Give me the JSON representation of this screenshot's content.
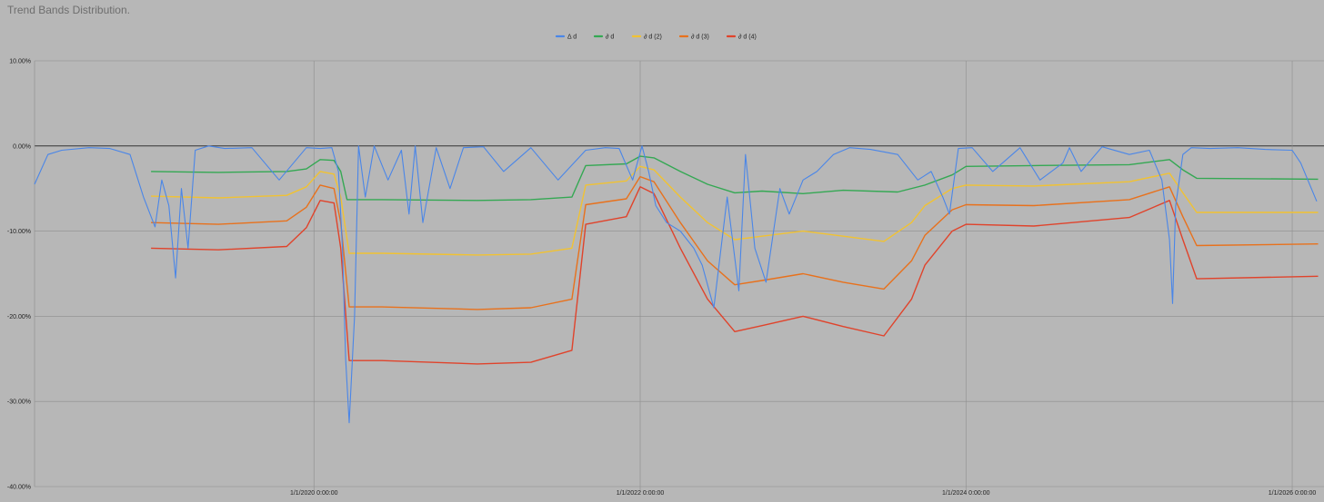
{
  "chart_data": {
    "type": "line",
    "title": "Trend Bands Distribution.",
    "xlabel": "",
    "ylabel": "",
    "ylim": [
      -0.4,
      0.1
    ],
    "y_ticks": [
      0.1,
      0.0,
      -0.1,
      -0.2,
      -0.3,
      -0.4
    ],
    "y_tick_labels": [
      "10.00%",
      "0.00%",
      "-10.00%",
      "-20.00%",
      "-30.00%",
      "-40.00%"
    ],
    "xlim": [
      "2018-04-15",
      "2026-03-01"
    ],
    "x_ticks": [
      "2020-01-01",
      "2022-01-01",
      "2024-01-01",
      "2026-01-01"
    ],
    "x_tick_labels": [
      "1/1/2020 0:00:00",
      "1/1/2022 0:00:00",
      "1/1/2024 0:00:00",
      "1/1/2026 0:00:00"
    ],
    "legend_position": "top-center",
    "grid": true,
    "series": [
      {
        "name": "Δ d",
        "color": "#4a86e8",
        "x": [
          "2018-04-15",
          "2018-05-15",
          "2018-06-15",
          "2018-08-15",
          "2018-10-01",
          "2018-11-15",
          "2018-12-15",
          "2019-01-10",
          "2019-01-25",
          "2019-02-10",
          "2019-02-25",
          "2019-03-10",
          "2019-03-25",
          "2019-04-10",
          "2019-05-10",
          "2019-06-15",
          "2019-08-15",
          "2019-10-15",
          "2019-12-15",
          "2020-01-15",
          "2020-02-10",
          "2020-02-25",
          "2020-03-05",
          "2020-03-12",
          "2020-03-20",
          "2020-04-01",
          "2020-04-10",
          "2020-04-25",
          "2020-05-15",
          "2020-06-15",
          "2020-07-15",
          "2020-08-01",
          "2020-08-15",
          "2020-09-01",
          "2020-10-01",
          "2020-11-01",
          "2020-12-01",
          "2021-01-15",
          "2021-03-01",
          "2021-05-01",
          "2021-07-01",
          "2021-09-01",
          "2021-10-15",
          "2021-11-15",
          "2021-12-15",
          "2022-01-05",
          "2022-01-20",
          "2022-02-05",
          "2022-03-01",
          "2022-04-01",
          "2022-05-01",
          "2022-05-20",
          "2022-06-15",
          "2022-07-15",
          "2022-08-10",
          "2022-08-25",
          "2022-09-15",
          "2022-10-10",
          "2022-11-10",
          "2022-12-01",
          "2023-01-01",
          "2023-02-01",
          "2023-03-10",
          "2023-04-15",
          "2023-06-01",
          "2023-08-01",
          "2023-09-15",
          "2023-10-15",
          "2023-11-10",
          "2023-11-25",
          "2023-12-15",
          "2024-01-15",
          "2024-03-01",
          "2024-05-01",
          "2024-06-15",
          "2024-08-05",
          "2024-08-20",
          "2024-09-15",
          "2024-11-01",
          "2025-01-01",
          "2025-02-15",
          "2025-03-15",
          "2025-04-01",
          "2025-04-08",
          "2025-04-15",
          "2025-05-01",
          "2025-05-20",
          "2025-07-01",
          "2025-09-01",
          "2025-11-01",
          "2026-01-01",
          "2026-01-20",
          "2026-02-05",
          "2026-02-25"
        ],
        "values": [
          -0.045,
          -0.01,
          -0.005,
          -0.002,
          -0.003,
          -0.01,
          -0.06,
          -0.095,
          -0.04,
          -0.07,
          -0.155,
          -0.05,
          -0.12,
          -0.005,
          0.0,
          -0.003,
          -0.002,
          -0.04,
          -0.002,
          -0.003,
          -0.002,
          -0.03,
          -0.12,
          -0.25,
          -0.325,
          -0.2,
          0.0,
          -0.06,
          0.0,
          -0.04,
          -0.005,
          -0.08,
          0.0,
          -0.09,
          -0.002,
          -0.05,
          -0.002,
          -0.001,
          -0.03,
          -0.002,
          -0.04,
          -0.005,
          -0.002,
          -0.003,
          -0.04,
          0.0,
          -0.03,
          -0.07,
          -0.09,
          -0.1,
          -0.12,
          -0.14,
          -0.19,
          -0.06,
          -0.17,
          -0.01,
          -0.12,
          -0.16,
          -0.05,
          -0.08,
          -0.04,
          -0.03,
          -0.01,
          -0.002,
          -0.004,
          -0.01,
          -0.04,
          -0.03,
          -0.06,
          -0.08,
          -0.003,
          -0.002,
          -0.03,
          -0.002,
          -0.04,
          -0.02,
          -0.002,
          -0.03,
          -0.001,
          -0.01,
          -0.005,
          -0.04,
          -0.11,
          -0.185,
          -0.07,
          -0.01,
          -0.002,
          -0.003,
          -0.002,
          -0.004,
          -0.005,
          -0.02,
          -0.04,
          -0.065
        ]
      },
      {
        "name": "∂ d",
        "color": "#34a853",
        "x": [
          "2019-01-01",
          "2019-06-01",
          "2019-11-01",
          "2019-12-15",
          "2020-01-15",
          "2020-02-15",
          "2020-03-01",
          "2020-03-15",
          "2020-06-01",
          "2021-01-01",
          "2021-05-01",
          "2021-08-01",
          "2021-09-01",
          "2021-12-01",
          "2022-01-01",
          "2022-02-01",
          "2022-04-01",
          "2022-06-01",
          "2022-08-01",
          "2022-10-01",
          "2023-01-01",
          "2023-04-01",
          "2023-08-01",
          "2023-10-01",
          "2023-12-01",
          "2024-01-01",
          "2024-06-01",
          "2025-01-01",
          "2025-04-01",
          "2025-05-01",
          "2025-06-01",
          "2026-02-28"
        ],
        "values": [
          -0.03,
          -0.031,
          -0.03,
          -0.027,
          -0.016,
          -0.017,
          -0.03,
          -0.063,
          -0.063,
          -0.064,
          -0.063,
          -0.06,
          -0.023,
          -0.021,
          -0.012,
          -0.014,
          -0.03,
          -0.045,
          -0.055,
          -0.053,
          -0.056,
          -0.052,
          -0.054,
          -0.046,
          -0.034,
          -0.024,
          -0.023,
          -0.022,
          -0.016,
          -0.028,
          -0.038,
          -0.039
        ]
      },
      {
        "name": "∂ d (2)",
        "color": "#f1c232",
        "x": [
          "2019-01-01",
          "2019-06-01",
          "2019-11-01",
          "2019-12-15",
          "2020-01-15",
          "2020-02-15",
          "2020-03-01",
          "2020-03-20",
          "2020-06-01",
          "2021-01-01",
          "2021-05-01",
          "2021-08-01",
          "2021-09-01",
          "2021-12-01",
          "2022-01-01",
          "2022-02-01",
          "2022-04-01",
          "2022-06-01",
          "2022-08-01",
          "2022-10-01",
          "2023-01-01",
          "2023-04-01",
          "2023-07-01",
          "2023-09-01",
          "2023-10-01",
          "2023-12-01",
          "2024-01-01",
          "2024-06-01",
          "2025-01-01",
          "2025-04-01",
          "2025-05-01",
          "2025-06-01",
          "2026-02-28"
        ],
        "values": [
          -0.059,
          -0.061,
          -0.058,
          -0.048,
          -0.03,
          -0.033,
          -0.06,
          -0.126,
          -0.126,
          -0.128,
          -0.127,
          -0.12,
          -0.046,
          -0.041,
          -0.024,
          -0.028,
          -0.06,
          -0.09,
          -0.11,
          -0.106,
          -0.1,
          -0.106,
          -0.112,
          -0.09,
          -0.07,
          -0.05,
          -0.046,
          -0.047,
          -0.042,
          -0.032,
          -0.055,
          -0.078,
          -0.078
        ]
      },
      {
        "name": "∂ d (3)",
        "color": "#e8711c",
        "x": [
          "2019-01-01",
          "2019-06-01",
          "2019-11-01",
          "2019-12-15",
          "2020-01-15",
          "2020-02-15",
          "2020-03-01",
          "2020-03-20",
          "2020-06-01",
          "2021-01-01",
          "2021-05-01",
          "2021-08-01",
          "2021-09-01",
          "2021-12-01",
          "2022-01-01",
          "2022-02-01",
          "2022-04-01",
          "2022-06-01",
          "2022-08-01",
          "2022-10-01",
          "2023-01-01",
          "2023-04-01",
          "2023-07-01",
          "2023-09-01",
          "2023-10-01",
          "2023-12-01",
          "2024-01-01",
          "2024-06-01",
          "2025-01-01",
          "2025-04-01",
          "2025-05-01",
          "2025-06-01",
          "2026-02-28"
        ],
        "values": [
          -0.09,
          -0.092,
          -0.088,
          -0.072,
          -0.046,
          -0.05,
          -0.09,
          -0.189,
          -0.189,
          -0.192,
          -0.19,
          -0.18,
          -0.069,
          -0.062,
          -0.036,
          -0.042,
          -0.09,
          -0.135,
          -0.163,
          -0.158,
          -0.15,
          -0.16,
          -0.168,
          -0.135,
          -0.105,
          -0.075,
          -0.069,
          -0.07,
          -0.063,
          -0.048,
          -0.083,
          -0.117,
          -0.115
        ]
      },
      {
        "name": "∂ d (4)",
        "color": "#e0432b",
        "x": [
          "2019-01-01",
          "2019-06-01",
          "2019-11-01",
          "2019-12-15",
          "2020-01-15",
          "2020-02-15",
          "2020-03-01",
          "2020-03-20",
          "2020-06-01",
          "2021-01-01",
          "2021-05-01",
          "2021-08-01",
          "2021-09-01",
          "2021-12-01",
          "2022-01-01",
          "2022-02-01",
          "2022-04-01",
          "2022-06-01",
          "2022-08-01",
          "2022-10-01",
          "2023-01-01",
          "2023-04-01",
          "2023-07-01",
          "2023-09-01",
          "2023-10-01",
          "2023-12-01",
          "2024-01-01",
          "2024-06-01",
          "2025-01-01",
          "2025-04-01",
          "2025-05-01",
          "2025-06-01",
          "2026-02-28"
        ],
        "values": [
          -0.12,
          -0.122,
          -0.118,
          -0.096,
          -0.064,
          -0.067,
          -0.12,
          -0.252,
          -0.252,
          -0.256,
          -0.254,
          -0.24,
          -0.092,
          -0.083,
          -0.048,
          -0.056,
          -0.12,
          -0.18,
          -0.218,
          -0.211,
          -0.2,
          -0.212,
          -0.223,
          -0.18,
          -0.14,
          -0.1,
          -0.092,
          -0.094,
          -0.084,
          -0.064,
          -0.11,
          -0.156,
          -0.153
        ]
      }
    ]
  }
}
